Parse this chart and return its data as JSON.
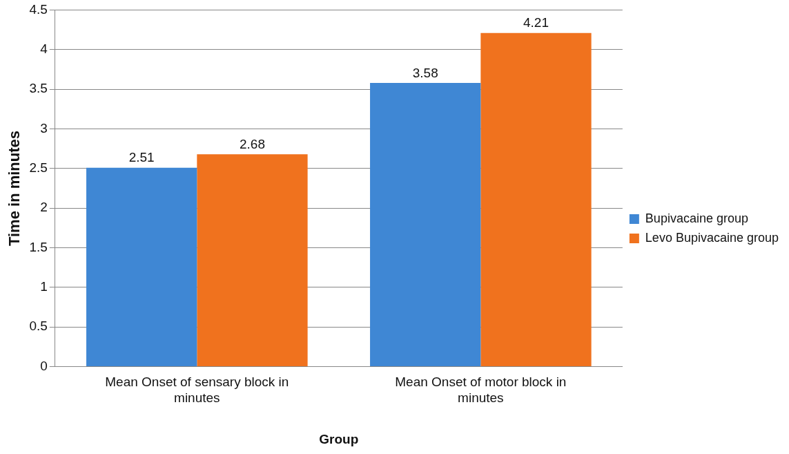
{
  "chart_data": {
    "type": "bar",
    "xlabel": "Group",
    "ylabel": "Time in minutes",
    "categories": [
      "Mean Onset of sensary block in minutes",
      "Mean Onset of motor block in minutes"
    ],
    "series": [
      {
        "name": "Bupivacaine group",
        "color": "#3f87d4",
        "values": [
          2.51,
          3.58
        ]
      },
      {
        "name": "Levo Bupivacaine group",
        "color": "#f0721e",
        "values": [
          2.68,
          4.21
        ]
      }
    ],
    "ylim": [
      0,
      4.5
    ],
    "yticks": [
      0,
      0.5,
      1,
      1.5,
      2,
      2.5,
      3,
      3.5,
      4,
      4.5
    ],
    "grid": "y",
    "legend": "right",
    "data_labels": true
  }
}
